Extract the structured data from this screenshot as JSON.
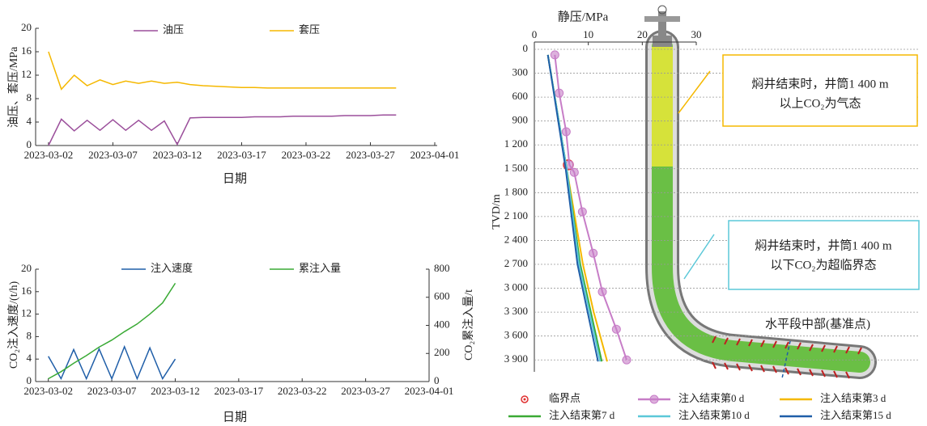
{
  "chart_data": [
    {
      "type": "line",
      "ylabel": "油压、套压/MPa",
      "xlabel": "日期",
      "x": [
        "2023-03-02",
        "2023-03-03",
        "2023-03-04",
        "2023-03-05",
        "2023-03-06",
        "2023-03-07",
        "2023-03-08",
        "2023-03-09",
        "2023-03-10",
        "2023-03-11",
        "2023-03-12",
        "2023-03-13",
        "2023-03-14",
        "2023-03-15",
        "2023-03-16",
        "2023-03-17",
        "2023-03-18",
        "2023-03-19",
        "2023-03-20",
        "2023-03-21",
        "2023-03-22",
        "2023-03-23",
        "2023-03-24",
        "2023-03-25",
        "2023-03-26",
        "2023-03-27",
        "2023-03-28",
        "2023-03-29"
      ],
      "series": [
        {
          "name": "油压",
          "color": "#9b4f9b",
          "values": [
            0,
            4.5,
            2.5,
            4.3,
            2.6,
            4.4,
            2.6,
            4.3,
            2.6,
            4.2,
            0.2,
            4.7,
            4.8,
            4.8,
            4.8,
            4.8,
            4.9,
            4.9,
            4.9,
            5.0,
            5.0,
            5.0,
            5.0,
            5.1,
            5.1,
            5.1,
            5.2,
            5.2
          ]
        },
        {
          "name": "套压",
          "color": "#f5b800",
          "values": [
            16,
            9.6,
            12,
            10.2,
            11.2,
            10.4,
            11,
            10.6,
            11,
            10.6,
            10.8,
            10.4,
            10.2,
            10.1,
            10.0,
            9.9,
            9.9,
            9.8,
            9.8,
            9.8,
            9.8,
            9.8,
            9.8,
            9.8,
            9.8,
            9.8,
            9.8,
            9.8
          ]
        }
      ],
      "xlim": [
        "2023-03-01",
        "2023-04-01"
      ],
      "xticks": [
        "2023-03-02",
        "2023-03-07",
        "2023-03-12",
        "2023-03-17",
        "2023-03-22",
        "2023-03-27",
        "2023-04-01"
      ],
      "ylim": [
        0,
        20
      ],
      "yticks": [
        0,
        4,
        8,
        12,
        16,
        20
      ]
    },
    {
      "type": "line",
      "ylabel": "CO₂注入速度/(t/h)",
      "y2label": "CO₂累注入量/t",
      "xlabel": "日期",
      "x": [
        "2023-03-02",
        "2023-03-03",
        "2023-03-04",
        "2023-03-05",
        "2023-03-06",
        "2023-03-07",
        "2023-03-08",
        "2023-03-09",
        "2023-03-10",
        "2023-03-11",
        "2023-03-12"
      ],
      "series": [
        {
          "name": "注入速度",
          "color": "#1f5ea8",
          "values": [
            4.5,
            0.5,
            5.7,
            0.5,
            5.8,
            0.5,
            6.2,
            0.5,
            6.0,
            0.5,
            4.0
          ]
        },
        {
          "name": "累注入量",
          "color": "#3aaa35",
          "axis": "y2",
          "values": [
            20,
            70,
            130,
            185,
            245,
            295,
            355,
            410,
            480,
            560,
            700
          ]
        }
      ],
      "xlim": [
        "2023-03-01",
        "2023-04-01"
      ],
      "xticks": [
        "2023-03-02",
        "2023-03-07",
        "2023-03-12",
        "2023-03-17",
        "2023-03-22",
        "2023-03-27",
        "2023-04-01"
      ],
      "ylim": [
        0,
        20
      ],
      "yticks": [
        0,
        4,
        8,
        12,
        16,
        20
      ],
      "y2lim": [
        0,
        800
      ],
      "y2ticks": [
        0,
        200,
        400,
        600,
        800
      ]
    },
    {
      "type": "profile",
      "xlabel": "静压/MPa",
      "ylabel": "TVD/m",
      "xlim": [
        0,
        30
      ],
      "xticks": [
        0,
        10,
        20,
        30
      ],
      "ylim": [
        0,
        4050
      ],
      "yticks": [
        0,
        300,
        600,
        900,
        {
          "value": 1200,
          "label": "1 200"
        },
        {
          "value": 1500,
          "label": "1 500"
        },
        {
          "value": 1800,
          "label": "1 800"
        },
        {
          "value": 2100,
          "label": "2 100"
        },
        {
          "value": 2400,
          "label": "2 400"
        },
        {
          "value": 2700,
          "label": "2 700"
        },
        {
          "value": 3000,
          "label": "3 000"
        },
        {
          "value": 3300,
          "label": "3 300"
        },
        {
          "value": 3600,
          "label": "3 600"
        },
        {
          "value": 3900,
          "label": "3 900"
        }
      ],
      "grid": true,
      "series": [
        {
          "name": "临界点",
          "color": "#e03030",
          "line": false,
          "marker": "ring",
          "x": [
            6.3
          ],
          "values": [
            1450
          ]
        },
        {
          "name": "注入结束第0 d",
          "color": "#c77dc7",
          "marker": "circle",
          "x": [
            3.8,
            4.6,
            5.9,
            6.5,
            7.4,
            8.9,
            10.9,
            12.6,
            15.2,
            17.1
          ],
          "values": [
            70,
            550,
            1035,
            1450,
            1545,
            2040,
            2560,
            3045,
            3515,
            3900
          ]
        },
        {
          "name": "注入结束第3 d",
          "color": "#f5b800",
          "x": [
            2.5,
            6,
            9,
            11,
            13.5
          ],
          "values": [
            70,
            1500,
            2700,
            3300,
            3920
          ]
        },
        {
          "name": "注入结束第7 d",
          "color": "#3aaa35",
          "x": [
            2.5,
            6,
            8.5,
            12.5
          ],
          "values": [
            70,
            1500,
            2700,
            3920
          ]
        },
        {
          "name": "注入结束第10 d",
          "color": "#5bc8d8",
          "x": [
            2.5,
            6,
            8.3,
            12.2
          ],
          "values": [
            70,
            1500,
            2700,
            3920
          ]
        },
        {
          "name": "注入结束第15 d",
          "color": "#1f5ea8",
          "x": [
            2.5,
            5.8,
            8,
            11.8
          ],
          "values": [
            70,
            1500,
            2700,
            3920
          ]
        }
      ],
      "annotations": [
        {
          "text": [
            "焖井结束时，井筒1 400 m",
            "以上CO₂为气态"
          ],
          "color": "#f5b800"
        },
        {
          "text": [
            "焖井结束时，井筒1 400 m",
            "以下CO₂为超临界态"
          ],
          "color": "#5bc8d8"
        },
        {
          "text": [
            "水平段中部(基准点)"
          ],
          "color": "#1f5ea8"
        }
      ]
    }
  ]
}
